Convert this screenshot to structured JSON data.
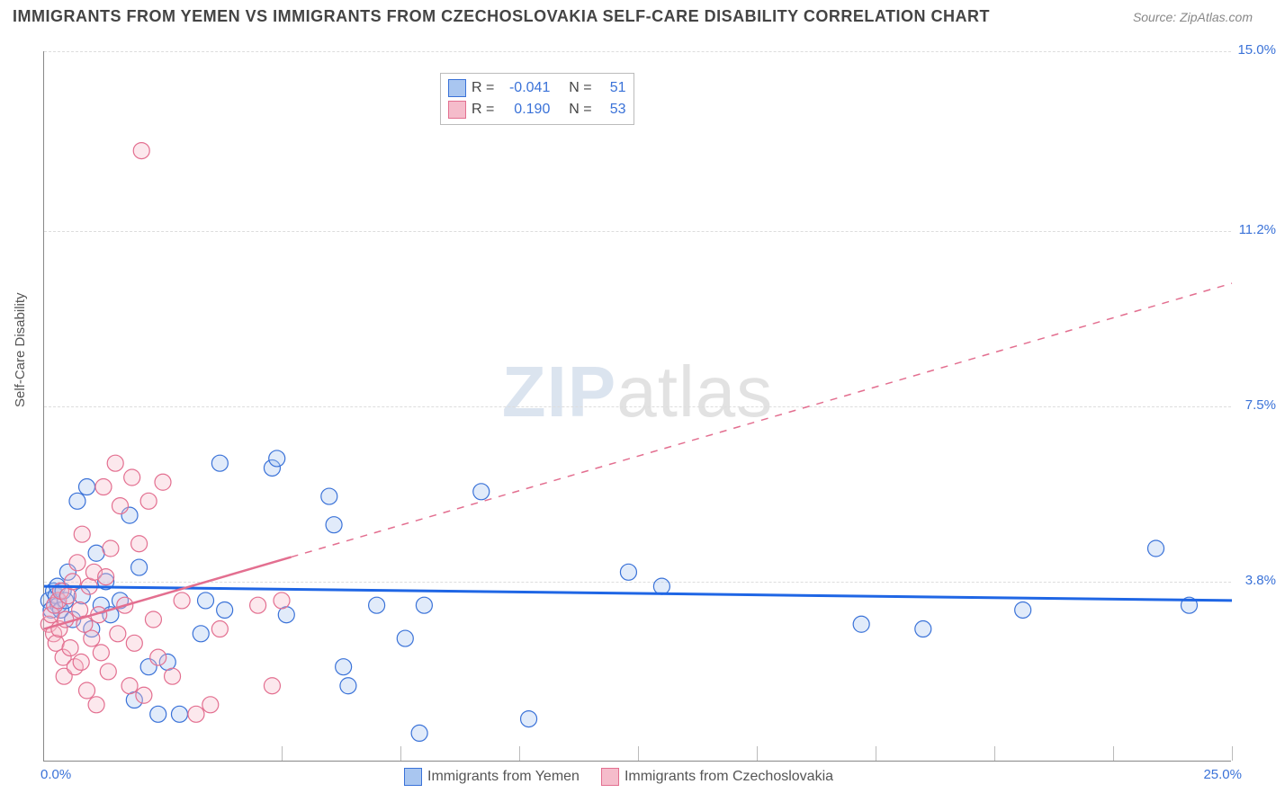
{
  "header": {
    "title": "IMMIGRANTS FROM YEMEN VS IMMIGRANTS FROM CZECHOSLOVAKIA SELF-CARE DISABILITY CORRELATION CHART",
    "source": "Source: ZipAtlas.com"
  },
  "chart": {
    "type": "scatter",
    "ylabel": "Self-Care Disability",
    "watermark_a": "ZIP",
    "watermark_b": "atlas",
    "xlim": [
      0,
      25
    ],
    "ylim": [
      0,
      15
    ],
    "background_color": "#ffffff",
    "grid_color": "#dddddd",
    "axis_color": "#888888",
    "tick_color": "#3a72d8",
    "yticks": [
      {
        "v": 3.8,
        "label": "3.8%"
      },
      {
        "v": 7.5,
        "label": "7.5%"
      },
      {
        "v": 11.2,
        "label": "11.2%"
      },
      {
        "v": 15.0,
        "label": "15.0%"
      }
    ],
    "xticks_minor": [
      5,
      7.5,
      10,
      12.5,
      15,
      17.5,
      20,
      22.5,
      25
    ],
    "xtick_left": {
      "v": 0,
      "label": "0.0%"
    },
    "xtick_right": {
      "v": 25,
      "label": "25.0%"
    },
    "marker_radius": 9,
    "marker_stroke_width": 1.2,
    "marker_fill_opacity": 0.35,
    "series": [
      {
        "id": "yemen",
        "label": "Immigrants from Yemen",
        "fill": "#a9c6f0",
        "stroke": "#3a72d8",
        "trend_color": "#1f66e5",
        "trend_width": 3,
        "trend_dash": "none",
        "r": "-0.041",
        "n": "51",
        "trend": {
          "x1": 0,
          "y1": 3.7,
          "x2": 25,
          "y2": 3.4
        },
        "points": [
          [
            0.1,
            3.4
          ],
          [
            0.15,
            3.2
          ],
          [
            0.2,
            3.6
          ],
          [
            0.25,
            3.5
          ],
          [
            0.3,
            3.3
          ],
          [
            0.28,
            3.7
          ],
          [
            0.35,
            3.2
          ],
          [
            0.4,
            3.6
          ],
          [
            0.45,
            3.4
          ],
          [
            0.5,
            4.0
          ],
          [
            0.6,
            3.0
          ],
          [
            0.7,
            5.5
          ],
          [
            0.8,
            3.5
          ],
          [
            0.9,
            5.8
          ],
          [
            1.0,
            2.8
          ],
          [
            1.1,
            4.4
          ],
          [
            1.2,
            3.3
          ],
          [
            1.3,
            3.8
          ],
          [
            1.4,
            3.1
          ],
          [
            1.6,
            3.4
          ],
          [
            1.8,
            5.2
          ],
          [
            1.9,
            1.3
          ],
          [
            2.0,
            4.1
          ],
          [
            2.2,
            2.0
          ],
          [
            2.4,
            1.0
          ],
          [
            2.6,
            2.1
          ],
          [
            2.85,
            1.0
          ],
          [
            3.3,
            2.7
          ],
          [
            3.4,
            3.4
          ],
          [
            3.7,
            6.3
          ],
          [
            3.8,
            3.2
          ],
          [
            4.8,
            6.2
          ],
          [
            4.9,
            6.4
          ],
          [
            5.1,
            3.1
          ],
          [
            6.0,
            5.6
          ],
          [
            6.1,
            5.0
          ],
          [
            6.3,
            2.0
          ],
          [
            6.4,
            1.6
          ],
          [
            7.0,
            3.3
          ],
          [
            7.6,
            2.6
          ],
          [
            7.9,
            0.6
          ],
          [
            8.0,
            3.3
          ],
          [
            9.2,
            5.7
          ],
          [
            10.2,
            0.9
          ],
          [
            12.3,
            4.0
          ],
          [
            13.0,
            3.7
          ],
          [
            17.2,
            2.9
          ],
          [
            18.5,
            2.8
          ],
          [
            20.6,
            3.2
          ],
          [
            23.4,
            4.5
          ],
          [
            24.1,
            3.3
          ]
        ]
      },
      {
        "id": "czech",
        "label": "Immigrants from Czechoslovakia",
        "fill": "#f5bccb",
        "stroke": "#e36f90",
        "trend_color": "#e36f90",
        "trend_width": 2.5,
        "trend_dash": "solid_then_dash",
        "solid_end_x": 5.2,
        "r": "0.190",
        "n": "53",
        "trend": {
          "x1": 0,
          "y1": 2.8,
          "x2": 25,
          "y2": 10.1
        },
        "points": [
          [
            0.1,
            2.9
          ],
          [
            0.15,
            3.1
          ],
          [
            0.2,
            2.7
          ],
          [
            0.22,
            3.3
          ],
          [
            0.25,
            2.5
          ],
          [
            0.3,
            3.4
          ],
          [
            0.32,
            2.8
          ],
          [
            0.35,
            3.6
          ],
          [
            0.4,
            2.2
          ],
          [
            0.42,
            1.8
          ],
          [
            0.45,
            3.0
          ],
          [
            0.5,
            3.5
          ],
          [
            0.55,
            2.4
          ],
          [
            0.6,
            3.8
          ],
          [
            0.65,
            2.0
          ],
          [
            0.7,
            4.2
          ],
          [
            0.75,
            3.2
          ],
          [
            0.78,
            2.1
          ],
          [
            0.8,
            4.8
          ],
          [
            0.85,
            2.9
          ],
          [
            0.9,
            1.5
          ],
          [
            0.95,
            3.7
          ],
          [
            1.0,
            2.6
          ],
          [
            1.05,
            4.0
          ],
          [
            1.1,
            1.2
          ],
          [
            1.15,
            3.1
          ],
          [
            1.2,
            2.3
          ],
          [
            1.25,
            5.8
          ],
          [
            1.3,
            3.9
          ],
          [
            1.35,
            1.9
          ],
          [
            1.4,
            4.5
          ],
          [
            1.5,
            6.3
          ],
          [
            1.55,
            2.7
          ],
          [
            1.6,
            5.4
          ],
          [
            1.7,
            3.3
          ],
          [
            1.8,
            1.6
          ],
          [
            1.85,
            6.0
          ],
          [
            1.9,
            2.5
          ],
          [
            2.0,
            4.6
          ],
          [
            2.1,
            1.4
          ],
          [
            2.2,
            5.5
          ],
          [
            2.3,
            3.0
          ],
          [
            2.4,
            2.2
          ],
          [
            2.5,
            5.9
          ],
          [
            2.05,
            12.9
          ],
          [
            2.7,
            1.8
          ],
          [
            2.9,
            3.4
          ],
          [
            3.2,
            1.0
          ],
          [
            3.5,
            1.2
          ],
          [
            3.7,
            2.8
          ],
          [
            4.5,
            3.3
          ],
          [
            4.8,
            1.6
          ],
          [
            5.0,
            3.4
          ]
        ]
      }
    ],
    "legend_top": {
      "r_label": "R =",
      "n_label": "N ="
    }
  }
}
